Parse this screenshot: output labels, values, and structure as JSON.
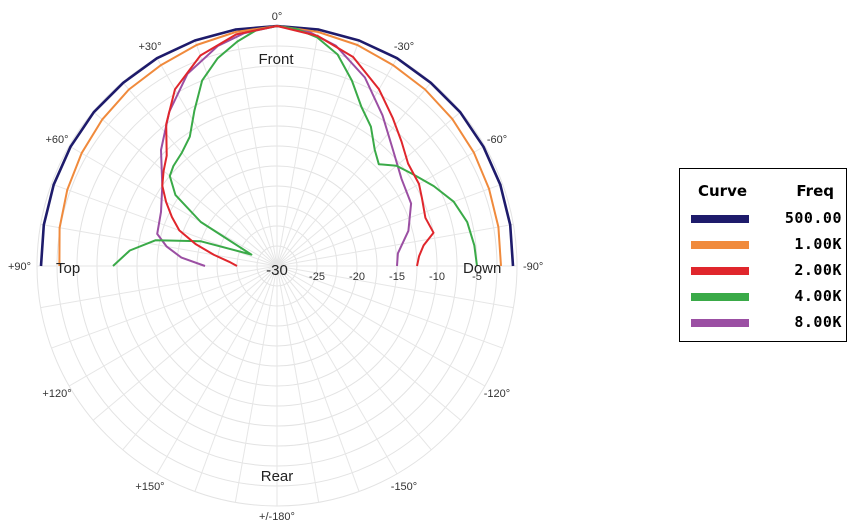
{
  "chart_data": {
    "type": "polar-line",
    "radial_axis": {
      "range": [
        -30,
        0
      ],
      "center_label": "-30",
      "tick_labels": [
        "-25",
        "-20",
        "-15",
        "-10",
        "-5"
      ]
    },
    "angle_labels": [
      "0°",
      "-30°",
      "-60°",
      "-90°",
      "-120°",
      "-150°",
      "+/-180°",
      "+150°",
      "+120°",
      "+90°",
      "+60°",
      "+30°"
    ],
    "region_labels": {
      "front": "Front",
      "rear": "Rear",
      "top": "Top",
      "down": "Down"
    },
    "grid": true,
    "legend": {
      "position": "right",
      "header_curve": "Curve",
      "header_freq": "Freq"
    },
    "series": [
      {
        "name": "500.00",
        "color": "#1e1b6b",
        "angles": [
          -90,
          -80,
          -70,
          -60,
          -50,
          -40,
          -30,
          -20,
          -10,
          0,
          10,
          20,
          30,
          40,
          50,
          60,
          70,
          80,
          90
        ],
        "values": [
          -0.5,
          -0.4,
          -0.3,
          -0.2,
          -0.1,
          -0.1,
          0,
          0,
          0,
          0,
          0,
          0,
          0,
          -0.1,
          -0.1,
          -0.2,
          -0.3,
          -0.4,
          -0.5
        ]
      },
      {
        "name": "1.00K",
        "color": "#f08a3c",
        "angles": [
          -90,
          -80,
          -70,
          -60,
          -50,
          -40,
          -30,
          -20,
          -10,
          0,
          10,
          20,
          30,
          40,
          50,
          60,
          70,
          80,
          90
        ],
        "values": [
          -2.0,
          -1.9,
          -1.8,
          -1.6,
          -1.4,
          -1.2,
          -1.0,
          -0.6,
          -0.3,
          0,
          -0.3,
          -0.6,
          -1.0,
          -1.2,
          -1.5,
          -1.8,
          -2.1,
          -2.4,
          -2.8
        ]
      },
      {
        "name": "2.00K",
        "color": "#e0262c",
        "angles": [
          -90,
          -86,
          -82,
          -78,
          -72,
          -65,
          -60,
          -52,
          -45,
          -38,
          -30,
          -20,
          -10,
          0,
          10,
          20,
          30,
          38,
          45,
          50,
          55,
          60,
          65,
          70,
          75,
          80,
          85,
          90
        ],
        "values": [
          -12.5,
          -12.2,
          -11.5,
          -10.0,
          -10.5,
          -10.0,
          -9.5,
          -9.2,
          -8.0,
          -6.5,
          -4.5,
          -2.2,
          -0.8,
          0,
          -0.6,
          -2.0,
          -4.5,
          -7.5,
          -10.5,
          -11.5,
          -12.5,
          -14.0,
          -15.5,
          -17.0,
          -19.5,
          -22.0,
          -24.0,
          -25.0
        ]
      },
      {
        "name": "4.00K",
        "color": "#3aaa48",
        "angles": [
          -90,
          -84,
          -77,
          -70,
          -63,
          -56,
          -50,
          -45,
          -40,
          -34,
          -28,
          -22,
          -16,
          -10,
          -5,
          0,
          5,
          10,
          16,
          22,
          28,
          34,
          40,
          46,
          50,
          55,
          60,
          66,
          72,
          78,
          84,
          90
        ],
        "values": [
          -5.0,
          -5.2,
          -5.6,
          -6.5,
          -8.0,
          -9.5,
          -10.5,
          -12.0,
          -11.0,
          -9.0,
          -7.5,
          -5.0,
          -2.5,
          -1.0,
          -0.3,
          0,
          -0.4,
          -1.5,
          -3.0,
          -5.0,
          -8.0,
          -10.5,
          -11.5,
          -12.0,
          -12.5,
          -14.5,
          -19.0,
          -26.5,
          -20.0,
          -14.5,
          -11.5,
          -9.5
        ]
      },
      {
        "name": "8.00K",
        "color": "#9b4fa3",
        "angles": [
          -90,
          -84,
          -75,
          -65,
          -55,
          -45,
          -35,
          -25,
          -15,
          -8,
          0,
          8,
          15,
          25,
          35,
          45,
          55,
          65,
          75,
          80,
          85,
          90
        ],
        "values": [
          -15.0,
          -14.8,
          -13.0,
          -11.5,
          -11.0,
          -9.5,
          -7.0,
          -4.0,
          -1.5,
          -0.5,
          0,
          -0.6,
          -1.5,
          -3.5,
          -6.5,
          -9.5,
          -12.5,
          -14.0,
          -14.5,
          -16.0,
          -18.0,
          -21.0
        ]
      }
    ]
  }
}
